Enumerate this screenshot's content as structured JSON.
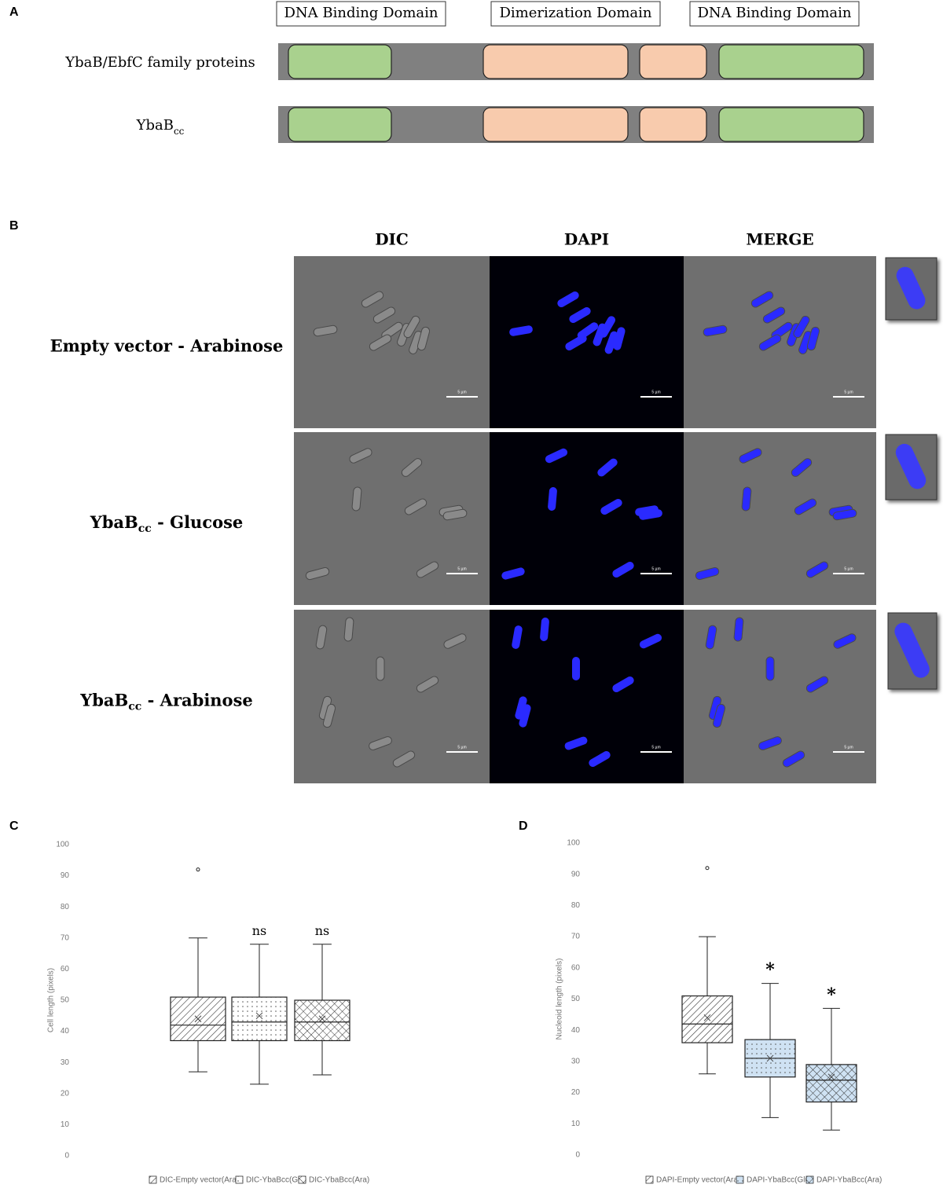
{
  "panels": {
    "a": "A",
    "b": "B",
    "c": "C",
    "d": "D"
  },
  "domains": {
    "headers": [
      "DNA Binding Domain",
      "Dimerization Domain",
      "DNA Binding Domain"
    ],
    "rows": [
      {
        "label": "YbaB/EbfC family proteins"
      },
      {
        "label": "YbaB",
        "subscript": "cc"
      }
    ]
  },
  "microscopy": {
    "columns": [
      "DIC",
      "DAPI",
      "MERGE"
    ],
    "rows": [
      {
        "label": "Empty vector - Arabinose"
      },
      {
        "label": "YbaB",
        "subscript": "cc",
        "suffix": " - Glucose"
      },
      {
        "label": "YbaB",
        "subscript": "cc",
        "suffix": " - Arabinose"
      }
    ],
    "scale_bar": "5 µm"
  },
  "chart_data": [
    {
      "type": "box",
      "ylabel": "Cell length (pixels)",
      "ylim": [
        0,
        100
      ],
      "yticks": [
        0,
        10,
        20,
        30,
        40,
        50,
        60,
        70,
        80,
        90,
        100
      ],
      "series": [
        {
          "name": "DIC-Empty vector(Ara)",
          "pattern": "diagonal",
          "color": "#ffffff",
          "min": 27,
          "q1": 37,
          "median": 42,
          "q3": 51,
          "max": 70,
          "mean": 44,
          "outliers": [
            92
          ]
        },
        {
          "name": "DIC-YbaBcc(Glu)",
          "pattern": "dots",
          "color": "#ffffff",
          "min": 23,
          "q1": 37,
          "median": 43,
          "q3": 51,
          "max": 68,
          "mean": 45,
          "outliers": [],
          "annotation": "ns"
        },
        {
          "name": "DIC-YbaBcc(Ara)",
          "pattern": "crosshatch",
          "color": "#ffffff",
          "min": 26,
          "q1": 37,
          "median": 43,
          "q3": 50,
          "max": 68,
          "mean": 44,
          "outliers": [],
          "annotation": "ns"
        }
      ]
    },
    {
      "type": "box",
      "ylabel": "Nucleoid length (pixels)",
      "ylim": [
        0,
        100
      ],
      "yticks": [
        0,
        10,
        20,
        30,
        40,
        50,
        60,
        70,
        80,
        90,
        100
      ],
      "series": [
        {
          "name": "DAPI-Empty vector(Ara)",
          "pattern": "diagonal",
          "color": "#ffffff",
          "min": 26,
          "q1": 36,
          "median": 42,
          "q3": 51,
          "max": 70,
          "mean": 44,
          "outliers": [
            92
          ]
        },
        {
          "name": "DAPI-YbaBcc(Glu)",
          "pattern": "dots",
          "color": "#cfe2f3",
          "min": 12,
          "q1": 25,
          "median": 31,
          "q3": 37,
          "max": 55,
          "mean": 31,
          "outliers": [],
          "annotation": "*"
        },
        {
          "name": "DAPI-YbaBcc(Ara)",
          "pattern": "crosshatch",
          "color": "#cfe2f3",
          "min": 8,
          "q1": 17,
          "median": 24,
          "q3": 29,
          "max": 47,
          "mean": 25,
          "outliers": [],
          "annotation": "*"
        }
      ]
    }
  ]
}
